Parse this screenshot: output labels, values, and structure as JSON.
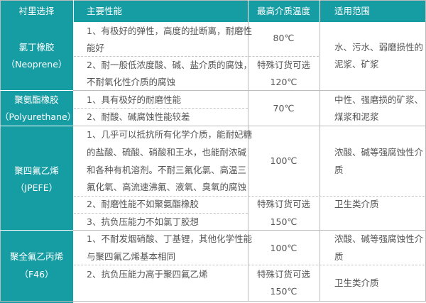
{
  "colors": {
    "header_bg": "#169ca3",
    "header_text": "#ffffff",
    "body_text": "#555555"
  },
  "header": {
    "col1": "衬里选择",
    "col2": "主要性能",
    "col3": "最高介质温度",
    "col4": "适用范围"
  },
  "rows": [
    {
      "name": "氯丁橡胶",
      "code": "（Neoprene）",
      "perf": [
        "1、有极好的弹性，高度的扯断离，耐磨性",
        "能好",
        "2、耐一般低浓度酸、碱、盐介质的腐蚀，",
        "不耐氧化性介质的腐蚀"
      ],
      "temp": [
        "80℃",
        "特殊订货可选",
        "120℃"
      ],
      "use": [
        "水、污水、弱磨损性的",
        "泥浆、矿浆"
      ]
    },
    {
      "name": "聚氨酯橡胶",
      "code": "（Polyurethane）",
      "perf": [
        "1、具有极好的耐磨性能",
        "2、耐酸、碱腐蚀性能较差"
      ],
      "temp": [
        "70℃"
      ],
      "use": [
        "中性、强磨损的矿浆、",
        "煤浆和泥浆"
      ]
    },
    {
      "name": "聚四氟乙烯",
      "code": "（JPEFE）",
      "perf": [
        "1、几乎可以抵抗所有化学介质，能耐妃糖",
        "的盐酸、硫酸、硝酸和王水，也能耐浓碱",
        "和各种有机溶剂。不耐三氟化氯、高温三",
        "氟化氧、高流速沸氟、液氧、臭氧的腐蚀",
        "2、耐磨性能不如聚氨酯橡胶",
        "3、抗负压能力不如氯丁胶想"
      ],
      "temp": [
        "100℃",
        "特殊订货可选",
        "150℃"
      ],
      "use": [
        "浓酸、碱等强腐蚀性介",
        "质",
        "卫生类介质"
      ]
    },
    {
      "name": "聚全氟乙丙烯",
      "code": "（F46）",
      "perf": [
        "1、不耐发烟硝酸、丁基锂，其他化学性能",
        "与聚四氟乙烯基本相同",
        "2、抗负压能力高于聚四氟乙烯"
      ],
      "temp": [
        "100℃",
        "特殊订货可选",
        "150℃"
      ],
      "use": [
        "浓酸、碱等强腐蚀性介",
        "质",
        "卫生类介质"
      ]
    }
  ]
}
